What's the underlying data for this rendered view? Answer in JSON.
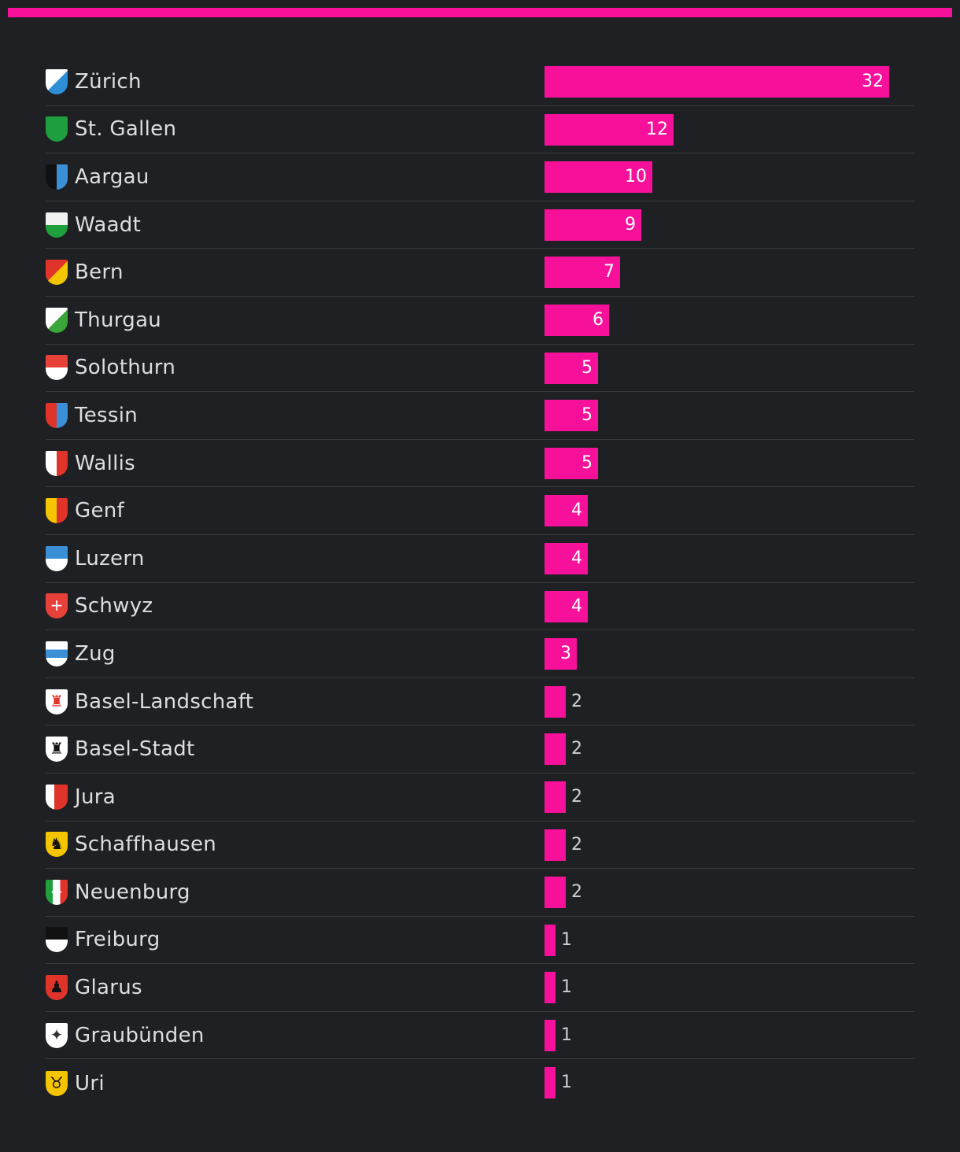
{
  "colors": {
    "accent": "#f7119a",
    "background": "#1f2023",
    "divider": "#3a3b3f"
  },
  "chart_data": {
    "type": "bar",
    "orientation": "horizontal",
    "xlim": [
      0,
      32
    ],
    "categories": [
      "Zürich",
      "St. Gallen",
      "Aargau",
      "Waadt",
      "Bern",
      "Thurgau",
      "Solothurn",
      "Tessin",
      "Wallis",
      "Genf",
      "Luzern",
      "Schwyz",
      "Zug",
      "Basel-Landschaft",
      "Basel-Stadt",
      "Jura",
      "Schaffhausen",
      "Neuenburg",
      "Freiburg",
      "Glarus",
      "Graubünden",
      "Uri"
    ],
    "values": [
      32,
      12,
      10,
      9,
      7,
      6,
      5,
      5,
      5,
      4,
      4,
      4,
      3,
      2,
      2,
      2,
      2,
      2,
      1,
      1,
      1,
      1
    ],
    "icons": [
      "zurich-flag-icon",
      "st-gallen-flag-icon",
      "aargau-flag-icon",
      "waadt-flag-icon",
      "bern-flag-icon",
      "thurgau-flag-icon",
      "solothurn-flag-icon",
      "tessin-flag-icon",
      "wallis-flag-icon",
      "genf-flag-icon",
      "luzern-flag-icon",
      "schwyz-flag-icon",
      "zug-flag-icon",
      "basel-landschaft-flag-icon",
      "basel-stadt-flag-icon",
      "jura-flag-icon",
      "schaffhausen-flag-icon",
      "neuenburg-flag-icon",
      "freiburg-flag-icon",
      "glarus-flag-icon",
      "graubunden-flag-icon",
      "uri-flag-icon"
    ],
    "grid": false,
    "legend": "none"
  }
}
